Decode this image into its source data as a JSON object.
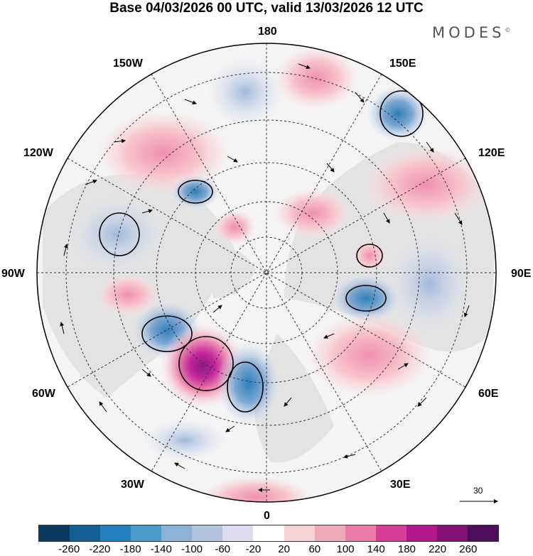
{
  "header": {
    "title": "Base 04/03/2026 00 UTC, valid 13/03/2026 12 UTC",
    "brand": "MODES",
    "brand_mark": "©"
  },
  "map": {
    "projection": "north-polar-stereographic",
    "longitude_labels": {
      "top": "180",
      "top_left": "150W",
      "top_right": "150E",
      "upper_left": "120W",
      "upper_right": "120E",
      "left": "90W",
      "right": "90E",
      "lower_left": "60W",
      "lower_right": "60E",
      "bottom_left": "30W",
      "bottom_right": "30E",
      "bottom": "0"
    },
    "vector_scale_label": "30"
  },
  "colors": {
    "neg_strong": "#2c7bb6",
    "neg_light": "#c6d1e8",
    "pos_light": "#f5c6cf",
    "pos_strong": "#a0107a",
    "land": "#e6e6e6"
  },
  "legend": {
    "swatches": [
      "#0b3a5e",
      "#135f94",
      "#2581bd",
      "#4b9ccb",
      "#8cb2d7",
      "#b4c3df",
      "#dcdcee",
      "#ffffff",
      "#f7d2d4",
      "#f0a9b8",
      "#ea7aa8",
      "#d53d97",
      "#b0178c",
      "#831073",
      "#4d0e5a"
    ],
    "ticks": [
      "-260",
      "-220",
      "-180",
      "-140",
      "-100",
      "-60",
      "-20",
      "20",
      "60",
      "100",
      "140",
      "180",
      "220",
      "260"
    ]
  }
}
